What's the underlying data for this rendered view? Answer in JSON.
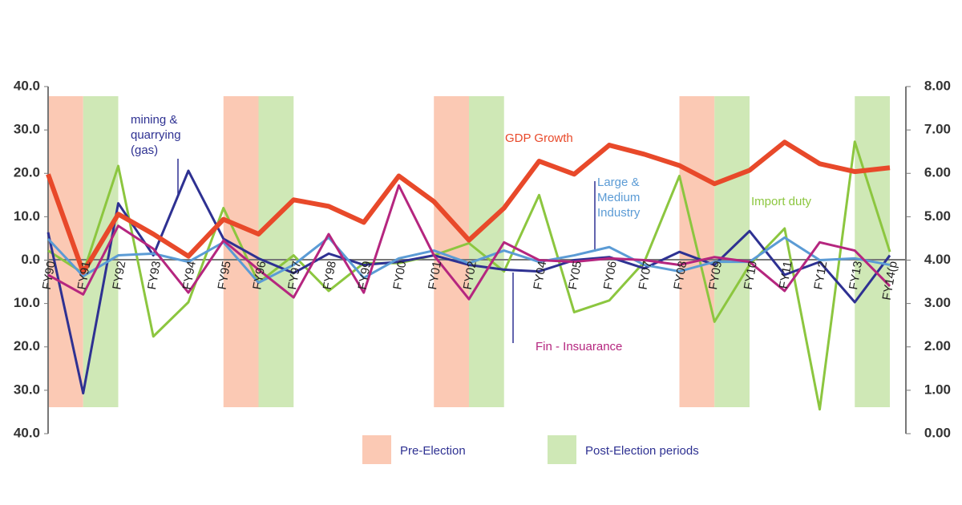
{
  "chart_data": {
    "type": "line",
    "categories": [
      "FY90",
      "FY91",
      "FY92",
      "FY93",
      "FY94",
      "FY95",
      "FY96",
      "FY97",
      "FY98",
      "FY99",
      "FY00",
      "FY01",
      "FY02",
      null,
      "FY04",
      "FY05",
      "FY06",
      "FY07",
      "FY08",
      "FY09",
      "FY10",
      "FY11",
      "FY12",
      "FY13",
      "FY14(p"
    ],
    "ylim": [
      -40,
      40
    ],
    "yticks": [
      {
        "value": 40,
        "label": "40.0"
      },
      {
        "value": 30,
        "label": "30.0"
      },
      {
        "value": 20,
        "label": "20.0"
      },
      {
        "value": 10,
        "label": "10.0"
      },
      {
        "value": 0,
        "label": "0.0"
      },
      {
        "value": -10,
        "label": "10.0"
      },
      {
        "value": -20,
        "label": "20.0"
      },
      {
        "value": -30,
        "label": "30.0"
      },
      {
        "value": -40,
        "label": "40.0"
      }
    ],
    "y2lim": [
      0,
      8
    ],
    "y2ticks": [
      {
        "value": 8,
        "label": "8.00"
      },
      {
        "value": 7,
        "label": "7.00"
      },
      {
        "value": 6,
        "label": "6.00"
      },
      {
        "value": 5,
        "label": "5.00"
      },
      {
        "value": 4,
        "label": "4.00"
      },
      {
        "value": 3,
        "label": "3.00"
      },
      {
        "value": 2,
        "label": "2.00"
      },
      {
        "value": 1,
        "label": "1.00"
      },
      {
        "value": 0,
        "label": "0.00"
      }
    ],
    "series": [
      {
        "name": "Import duty",
        "color": "#8cc63f",
        "values": [
          2.2,
          -3,
          21.7,
          -17.6,
          -9.7,
          12,
          -5.2,
          1.1,
          -7.1,
          -0.7,
          -0.7,
          1.1,
          3.9,
          -2.6,
          15,
          -12,
          -9.3,
          -0.4,
          19.4,
          -14.2,
          -1.1,
          7.3,
          -34.4,
          27.3,
          1.9
        ]
      },
      {
        "name": "mining & quarrying (gas)",
        "color": "#2e3192",
        "values": [
          6.4,
          -30.7,
          13.1,
          1.1,
          20.6,
          4.9,
          0.4,
          -3,
          1.5,
          -1.1,
          -0.4,
          1.1,
          -1.1,
          -2.2,
          -2.6,
          0,
          0.7,
          -1.9,
          1.9,
          -1.1,
          6.7,
          -3.4,
          -0.4,
          -9.7,
          1.1
        ]
      },
      {
        "name": "Large & Medium Industry",
        "color": "#5b9bd5",
        "values": [
          4.9,
          -3.7,
          1.1,
          1.5,
          -0.4,
          4.1,
          -5.2,
          -1.1,
          5.2,
          -4.1,
          0.4,
          2.2,
          -0.7,
          2.2,
          -0.4,
          1.1,
          3,
          -1.1,
          -2.6,
          -0.4,
          -0.4,
          5.2,
          0,
          0.4,
          -1.1
        ]
      },
      {
        "name": "Fin - Insuarance",
        "color": "#b5267f",
        "values": [
          -3.4,
          -7.9,
          7.9,
          2.6,
          -7.5,
          4.5,
          -2.2,
          -8.6,
          6,
          -7.5,
          17.2,
          1.1,
          -9,
          4.1,
          0,
          -0.4,
          0.4,
          0,
          -1.1,
          0.7,
          -0.4,
          -7.1,
          4.1,
          2.2,
          -6
        ]
      },
      {
        "name": "GDP Growth",
        "color": "#e8492a",
        "axis": "y2",
        "values": [
          5.98,
          3.72,
          5.06,
          4.6,
          4.09,
          4.94,
          4.6,
          5.39,
          5.24,
          4.87,
          5.94,
          5.35,
          4.46,
          5.2,
          6.28,
          5.98,
          6.65,
          6.44,
          6.18,
          5.76,
          6.07,
          6.72,
          6.22,
          6.04,
          6.13
        ]
      }
    ],
    "periods": [
      {
        "name": "Pre-Election",
        "color": "#fbc9b4",
        "at": [
          0,
          5,
          11,
          18
        ]
      },
      {
        "name": "Post-Election periods",
        "color": "#cfe8b6",
        "at": [
          1,
          6,
          12,
          19,
          23
        ]
      }
    ]
  }
}
